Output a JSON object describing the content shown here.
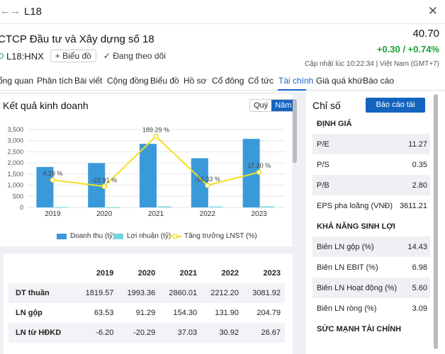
{
  "window": {
    "title": "L18"
  },
  "company": {
    "name": "CTCP Đầu tư và Xây dựng số 18",
    "ticker": "L18:HNX",
    "price": "40.70",
    "change": "+0.30 / +0.74%",
    "updated": "Cập nhật lúc  10:22:34 | Việt Nam (GMT+7)",
    "chart_button": "Biểu đồ",
    "follow_label": "Đang theo dõi"
  },
  "tabs": [
    "ổng quan",
    "Phân tích",
    "Bài viết",
    "Cộng đồng",
    "Biểu đồ",
    "Hồ sơ",
    "Cổ đông",
    "Cổ tức",
    "Tài chính",
    "Giá quá khứ",
    "Báo cáo"
  ],
  "active_tab": "Tài chính",
  "results": {
    "title": "Kết quả kinh doanh",
    "period_quarter": "Quý",
    "period_year": "Năm"
  },
  "chart_data": {
    "type": "bar",
    "categories": [
      "2019",
      "2020",
      "2021",
      "2022",
      "2023"
    ],
    "ylim": [
      0,
      3500
    ],
    "yticks": [
      "0",
      "500",
      "1,000",
      "1,500",
      "2,000",
      "2,500",
      "3,000",
      "3,500"
    ],
    "series": [
      {
        "name": "Doanh thu (tỷ)",
        "kind": "bar",
        "color": "#3a9ad9",
        "values": [
          1819.57,
          1993.36,
          2860.01,
          2212.2,
          3081.92
        ]
      },
      {
        "name": "Lợi nhuận (tỷ)",
        "kind": "bar",
        "color": "#6fd6e0",
        "values": [
          20,
          8,
          45,
          40,
          45
        ]
      },
      {
        "name": "Tăng trưởng LNST (%)",
        "kind": "line",
        "color": "#f0e020",
        "values": [
          4.29,
          -22.91,
          189.29,
          -18.33,
          37.3
        ],
        "labels": [
          "4.29 %",
          "-22.91 %",
          "189.29 %",
          "-18.33 %",
          "37.30 %"
        ]
      }
    ]
  },
  "table": {
    "headers": [
      "",
      "2019",
      "2020",
      "2021",
      "2022",
      "2023"
    ],
    "rows": [
      [
        "DT thuần",
        "1819.57",
        "1993.36",
        "2860.01",
        "2212.20",
        "3081.92"
      ],
      [
        "LN gộp",
        "63.53",
        "91.29",
        "154.30",
        "131.90",
        "204.79"
      ],
      [
        "LN từ HĐKD",
        "-6.20",
        "-20.29",
        "37.03",
        "30.92",
        "26.67"
      ]
    ]
  },
  "ratios": {
    "title": "Chỉ số",
    "report_button": "Báo cáo tài chính",
    "rows": [
      {
        "label": "ĐỊNH GIÁ",
        "value": "",
        "section": true
      },
      {
        "label": "P/E",
        "value": "11.27"
      },
      {
        "label": "P/S",
        "value": "0.35"
      },
      {
        "label": "P/B",
        "value": "2.80"
      },
      {
        "label": "EPS pha loãng (VNĐ)",
        "value": "3611.21"
      },
      {
        "label": "KHẢ NĂNG SINH LỢI",
        "value": "",
        "section": true
      },
      {
        "label": "Biên LN gộp (%)",
        "value": "14.43"
      },
      {
        "label": "Biên LN EBIT (%)",
        "value": "6.98"
      },
      {
        "label": "Biên LN Hoạt động (%)",
        "value": "5.60"
      },
      {
        "label": "Biên LN ròng (%)",
        "value": "3.09"
      },
      {
        "label": "SỨC MẠNH TÀI CHÍNH",
        "value": "",
        "section": true
      }
    ]
  }
}
